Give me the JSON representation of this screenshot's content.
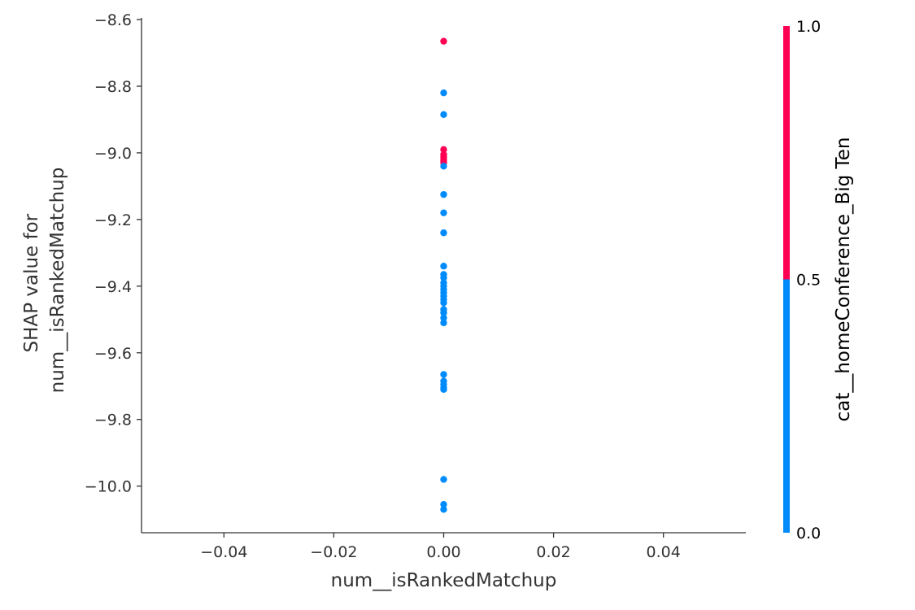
{
  "chart_data": {
    "type": "scatter",
    "xlabel": "num__isRankedMatchup",
    "ylabel_lines": [
      "SHAP value for",
      "num__isRankedMatchup"
    ],
    "xlim": [
      -0.055,
      0.055
    ],
    "ylim": [
      -10.14,
      -8.595
    ],
    "x_ticks": [
      -0.04,
      -0.02,
      0.0,
      0.02,
      0.04
    ],
    "x_tick_labels": [
      "−0.04",
      "−0.02",
      "0.00",
      "0.02",
      "0.04"
    ],
    "y_ticks": [
      -8.6,
      -8.8,
      -9.0,
      -9.2,
      -9.4,
      -9.6,
      -9.8,
      -10.0
    ],
    "y_tick_labels": [
      "−8.6",
      "−8.8",
      "−9.0",
      "−9.2",
      "−9.4",
      "−9.6",
      "−9.8",
      "−10.0"
    ],
    "grid": false,
    "points": [
      {
        "x": 0.0,
        "y": -8.665,
        "c": 1
      },
      {
        "x": 0.0,
        "y": -8.82,
        "c": 0
      },
      {
        "x": 0.0,
        "y": -8.885,
        "c": 0
      },
      {
        "x": 0.0,
        "y": -8.99,
        "c": 1
      },
      {
        "x": 0.0,
        "y": -9.005,
        "c": 1
      },
      {
        "x": 0.0,
        "y": -9.012,
        "c": 1
      },
      {
        "x": 0.0,
        "y": -9.018,
        "c": 1
      },
      {
        "x": 0.0,
        "y": -9.025,
        "c": 1
      },
      {
        "x": 0.0,
        "y": -9.03,
        "c": 1
      },
      {
        "x": 0.0,
        "y": -9.04,
        "c": 0
      },
      {
        "x": 0.0,
        "y": -9.125,
        "c": 0
      },
      {
        "x": 0.0,
        "y": -9.18,
        "c": 0
      },
      {
        "x": 0.0,
        "y": -9.24,
        "c": 0
      },
      {
        "x": 0.0,
        "y": -9.34,
        "c": 0
      },
      {
        "x": 0.0,
        "y": -9.365,
        "c": 0
      },
      {
        "x": 0.0,
        "y": -9.375,
        "c": 0
      },
      {
        "x": 0.0,
        "y": -9.39,
        "c": 0
      },
      {
        "x": 0.0,
        "y": -9.4,
        "c": 0
      },
      {
        "x": 0.0,
        "y": -9.41,
        "c": 0
      },
      {
        "x": 0.0,
        "y": -9.42,
        "c": 0
      },
      {
        "x": 0.0,
        "y": -9.43,
        "c": 0
      },
      {
        "x": 0.0,
        "y": -9.44,
        "c": 0
      },
      {
        "x": 0.0,
        "y": -9.45,
        "c": 0
      },
      {
        "x": 0.0,
        "y": -9.47,
        "c": 0
      },
      {
        "x": 0.0,
        "y": -9.48,
        "c": 0
      },
      {
        "x": 0.0,
        "y": -9.495,
        "c": 0
      },
      {
        "x": 0.0,
        "y": -9.51,
        "c": 0
      },
      {
        "x": 0.0,
        "y": -9.665,
        "c": 0
      },
      {
        "x": 0.0,
        "y": -9.685,
        "c": 0
      },
      {
        "x": 0.0,
        "y": -9.695,
        "c": 0
      },
      {
        "x": 0.0,
        "y": -9.705,
        "c": 0
      },
      {
        "x": 0.0,
        "y": -9.71,
        "c": 0
      },
      {
        "x": 0.0,
        "y": -9.98,
        "c": 0
      },
      {
        "x": 0.0,
        "y": -10.055,
        "c": 0
      },
      {
        "x": 0.0,
        "y": -10.07,
        "c": 0
      }
    ],
    "colorbar": {
      "label": "cat__homeConference_Big Ten",
      "range": [
        0.0,
        1.0
      ],
      "ticks": [
        0.0,
        0.5,
        1.0
      ],
      "tick_labels": [
        "0.0",
        "0.5",
        "1.0"
      ],
      "low_color": "#008bfb",
      "high_color": "#ff0052"
    }
  }
}
